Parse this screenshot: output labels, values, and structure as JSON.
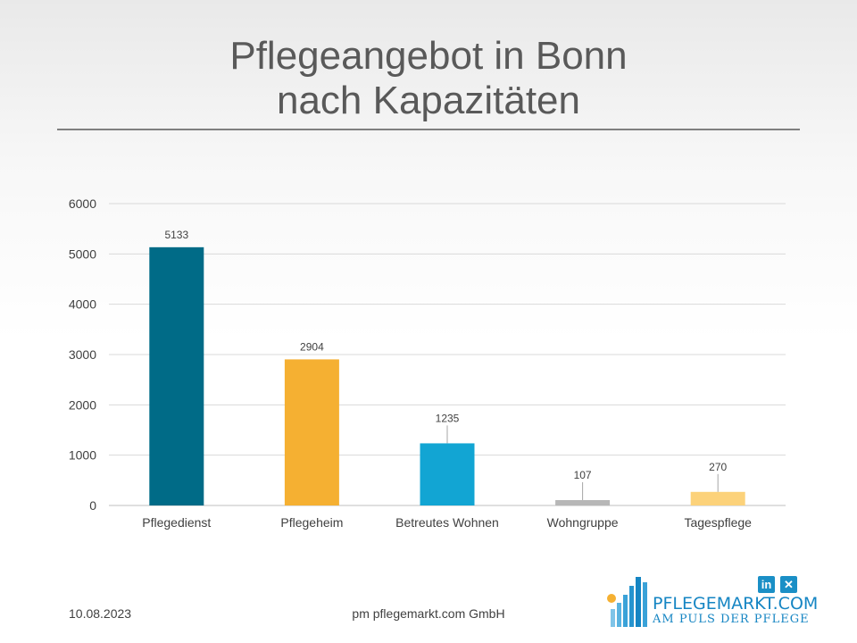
{
  "title_lines": [
    "Pflegeangebot in Bonn",
    "nach Kapazitäten"
  ],
  "footer": {
    "date": "10.08.2023",
    "company": "pm pflegemarkt.com GmbH"
  },
  "logo": {
    "main": "PFLEGEMARKT.COM",
    "sub": "AM PULS DER PFLEGE",
    "social_icons": [
      "linkedin-icon",
      "xing-icon"
    ]
  },
  "chart_data": {
    "type": "bar",
    "categories": [
      "Pflegedienst",
      "Pflegeheim",
      "Betreutes Wohnen",
      "Wohngruppe",
      "Tagespflege"
    ],
    "values": [
      5133,
      2904,
      1235,
      107,
      270
    ],
    "colors": [
      "#006b87",
      "#f5b032",
      "#12a5d3",
      "#b7b7b7",
      "#fcd27a"
    ],
    "ylim": [
      0,
      6000
    ],
    "yticks": [
      0,
      1000,
      2000,
      3000,
      4000,
      5000,
      6000
    ],
    "grid": true,
    "data_labels": true
  }
}
